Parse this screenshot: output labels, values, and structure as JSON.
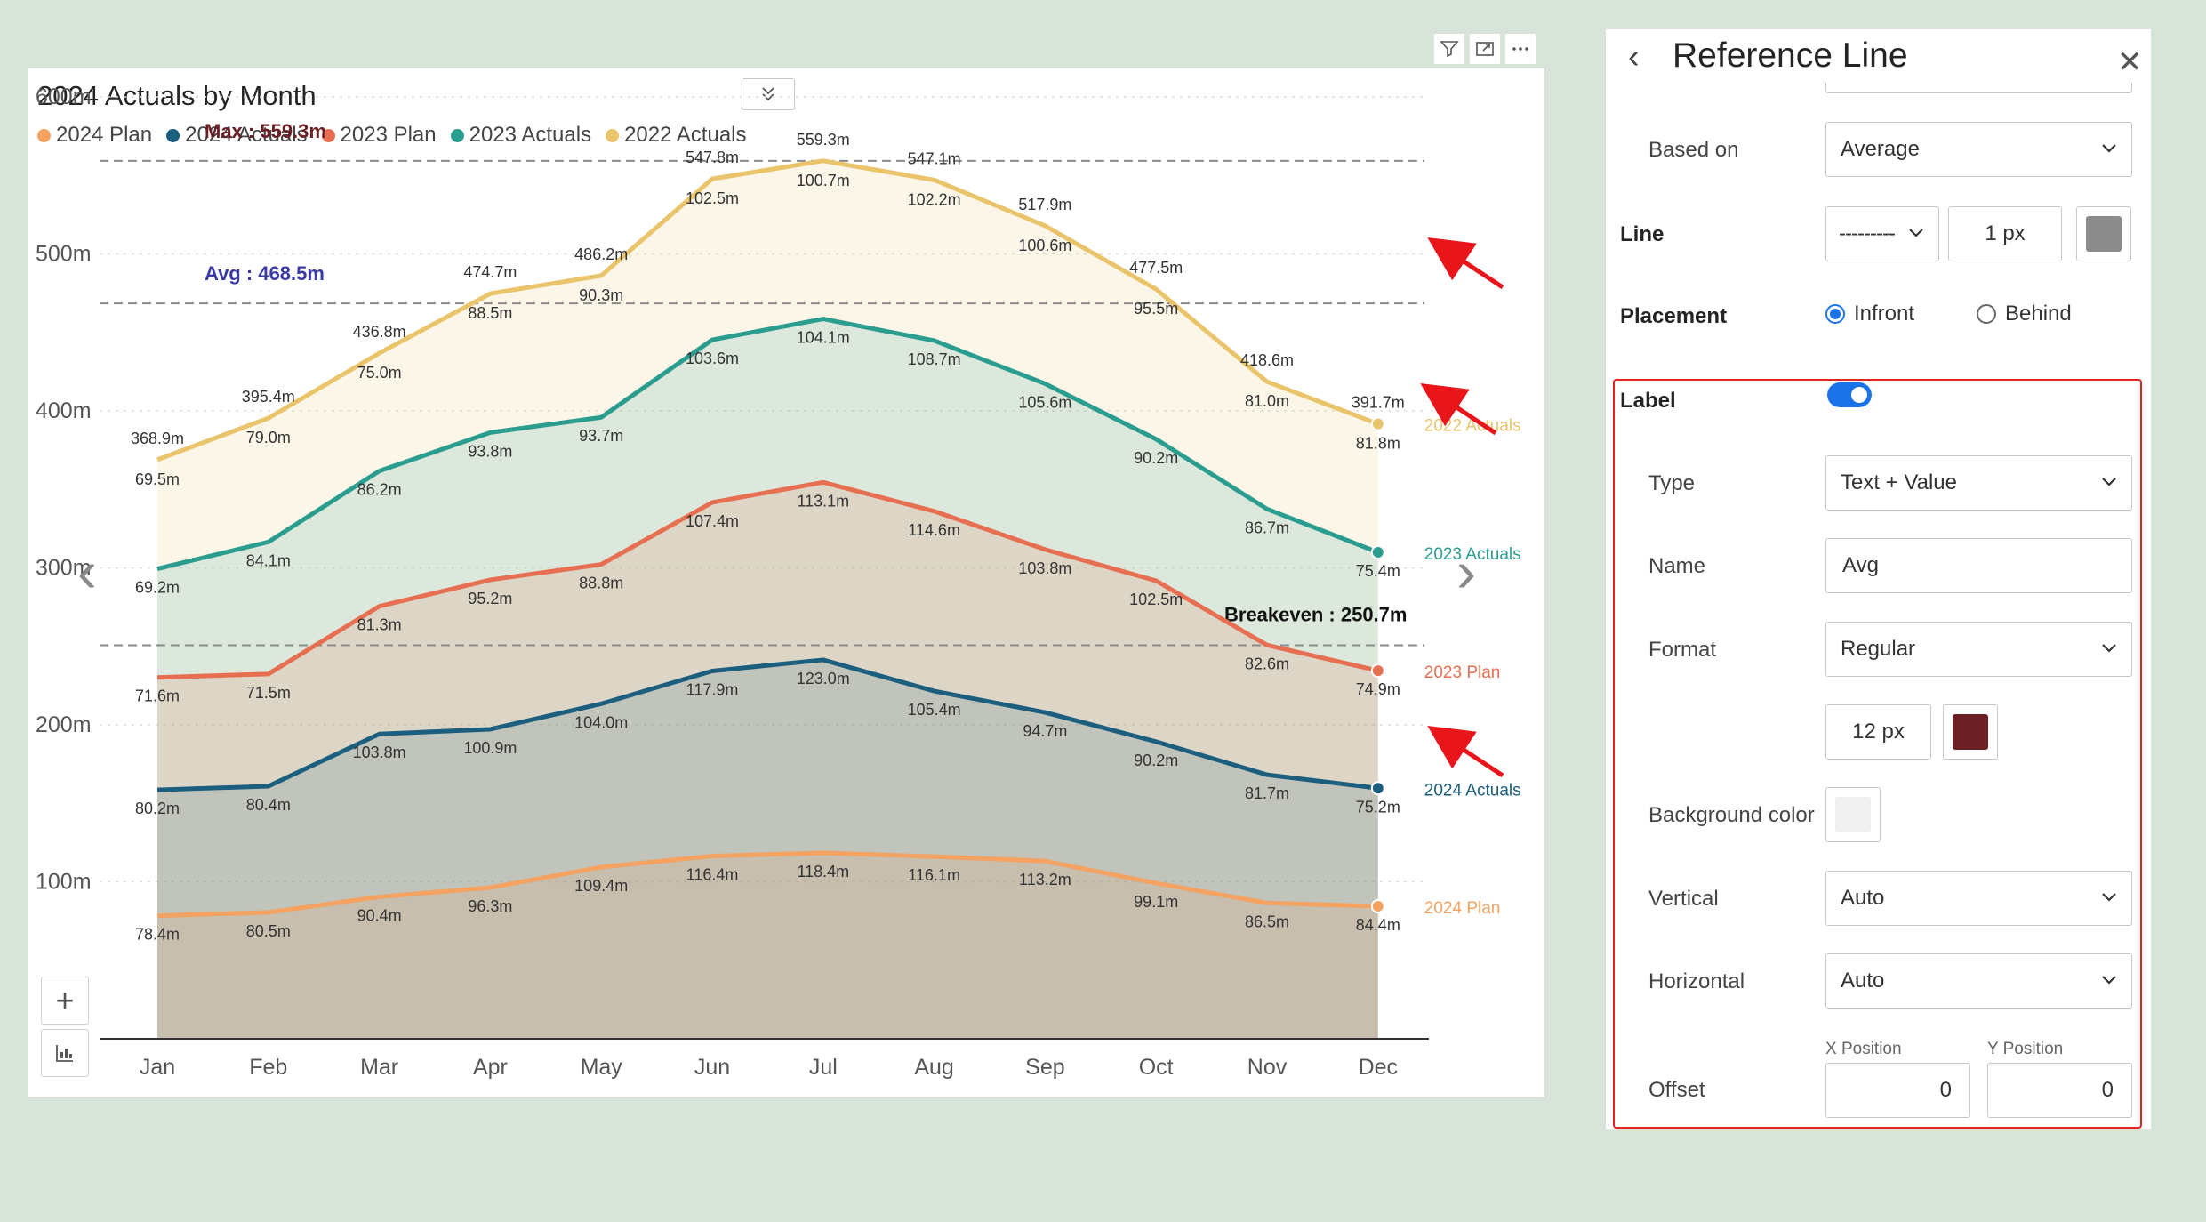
{
  "visual_header": {
    "icons": [
      "filter-icon",
      "focus-mode-icon",
      "more-options-icon"
    ]
  },
  "chart_data": {
    "type": "area",
    "title": "2024 Actuals by Month",
    "categories": [
      "Jan",
      "Feb",
      "Mar",
      "Apr",
      "May",
      "Jun",
      "Jul",
      "Aug",
      "Sep",
      "Oct",
      "Nov",
      "Dec"
    ],
    "y_ticks": [
      "100m",
      "200m",
      "300m",
      "400m",
      "500m",
      "600m"
    ],
    "ylim": [
      0,
      600
    ],
    "grid": true,
    "legend_position": "top-left",
    "series": [
      {
        "name": "2024 Plan",
        "color": "#f4a261",
        "end_label": "2024 Plan",
        "cumulative": [
          78.4,
          80.5,
          90.4,
          96.3,
          109.4,
          116.4,
          118.4,
          116.1,
          113.2,
          99.1,
          86.5,
          84.4
        ],
        "labels": [
          "78.4m",
          "80.5m",
          "90.4m",
          "96.3m",
          "109.4m",
          "116.4m",
          "118.4m",
          "116.1m",
          "113.2m",
          "99.1m",
          "86.5m",
          "84.4m"
        ]
      },
      {
        "name": "2024 Actuals",
        "color": "#1b5e7e",
        "end_label": "2024 Actuals",
        "cumulative": [
          158.6,
          160.9,
          194.2,
          197.2,
          213.4,
          234.3,
          241.4,
          221.5,
          207.9,
          189.3,
          168.2,
          159.6
        ],
        "labels": [
          "80.2m",
          "80.4m",
          "103.8m",
          "100.9m",
          "104.0m",
          "117.9m",
          "123.0m",
          "105.4m",
          "94.7m",
          "90.2m",
          "81.7m",
          "75.2m"
        ]
      },
      {
        "name": "2023 Plan",
        "color": "#e76f51",
        "end_label": "2023 Plan",
        "cumulative": [
          230.2,
          232.4,
          275.5,
          292.4,
          302.2,
          341.7,
          354.5,
          336.1,
          311.7,
          291.8,
          250.8,
          234.5
        ],
        "labels": [
          "71.6m",
          "71.5m",
          "81.3m",
          "95.2m",
          "88.8m",
          "107.4m",
          "113.1m",
          "114.6m",
          "103.8m",
          "102.5m",
          "82.6m",
          "74.9m"
        ]
      },
      {
        "name": "2023 Actuals",
        "color": "#2a9d8f",
        "end_label": "2023 Actuals",
        "cumulative": [
          299.4,
          316.5,
          361.7,
          386.2,
          395.9,
          445.3,
          458.6,
          444.8,
          417.3,
          382.0,
          337.5,
          309.9
        ],
        "labels": [
          "69.2m",
          "84.1m",
          "86.2m",
          "93.8m",
          "93.7m",
          "103.6m",
          "104.1m",
          "108.7m",
          "105.6m",
          "90.2m",
          "86.7m",
          "75.4m"
        ]
      },
      {
        "name": "2022 Actuals",
        "color": "#e9c46a",
        "end_label": "2022 Actuals",
        "cumulative": [
          368.9,
          395.4,
          436.8,
          474.7,
          486.2,
          547.8,
          559.3,
          547.1,
          517.9,
          477.5,
          418.6,
          391.7
        ],
        "values": [
          "69.5m",
          "79.0m",
          "75.0m",
          "88.5m",
          "90.3m",
          "102.5m",
          "100.7m",
          "102.2m",
          "100.6m",
          "95.5m",
          "81.0m",
          "81.8m"
        ],
        "totals": [
          "368.9m",
          "395.4m",
          "436.8m",
          "474.7m",
          "486.2m",
          "547.8m",
          "559.3m",
          "547.1m",
          "517.9m",
          "477.5m",
          "418.6m",
          "391.7m"
        ]
      }
    ],
    "reference_lines": [
      {
        "label": "Max : 559.3m",
        "value": 559.3,
        "color": "#6b1f24"
      },
      {
        "label": "Avg : 468.5m",
        "value": 468.5,
        "color": "#3b3ba8"
      },
      {
        "label": "Breakeven : 250.7m",
        "value": 250.7,
        "color": "#111111"
      }
    ]
  },
  "panel": {
    "title": "Reference Line",
    "based_on": {
      "label": "Based on",
      "value": "Average"
    },
    "line": {
      "label": "Line",
      "style": "---------",
      "width": "1 px",
      "color": "#8c8c8c"
    },
    "placement": {
      "label": "Placement",
      "options": [
        "Infront",
        "Behind"
      ],
      "selected": "Infront"
    },
    "label_section": {
      "label": "Label",
      "enabled": true,
      "type": {
        "label": "Type",
        "value": "Text + Value"
      },
      "name": {
        "label": "Name",
        "value": "Avg"
      },
      "format": {
        "label": "Format",
        "value": "Regular",
        "font_size": "12 px",
        "font_color": "#6b1f24"
      },
      "background": {
        "label": "Background color",
        "color": "#f0f0f0"
      },
      "vertical": {
        "label": "Vertical",
        "value": "Auto"
      },
      "horizontal": {
        "label": "Horizontal",
        "value": "Auto"
      },
      "offset": {
        "label": "Offset",
        "x_label": "X Position",
        "y_label": "Y Position",
        "x": "0",
        "y": "0"
      }
    }
  }
}
